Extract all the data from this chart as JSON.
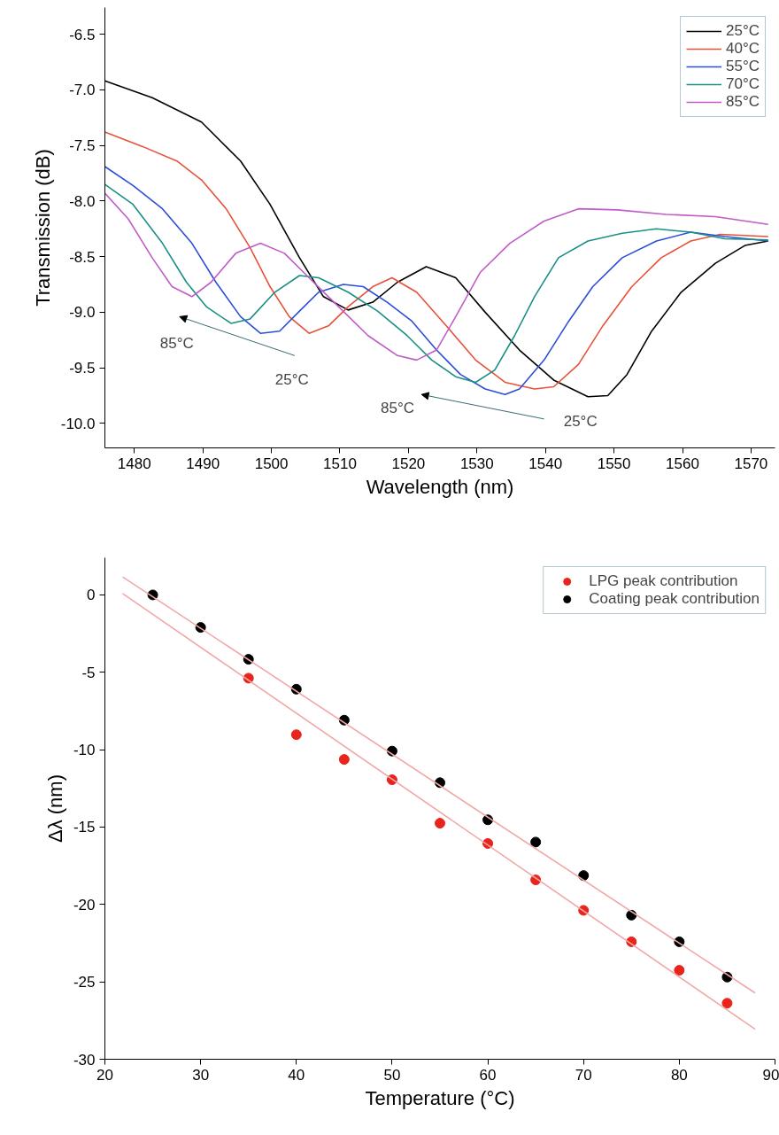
{
  "chart_data": [
    {
      "type": "line",
      "xlabel": "Wavelength (nm)",
      "ylabel": "Transmission (dB)",
      "xlim": [
        1475.7,
        1573.5
      ],
      "ylim": [
        -10.22,
        -6.26
      ],
      "xticks": [
        1480,
        1490,
        1500,
        1510,
        1520,
        1530,
        1540,
        1550,
        1560,
        1570
      ],
      "yticks": [
        -6.5,
        {
          "value": -7,
          "label": "-7.0"
        },
        -7.5,
        {
          "value": -8,
          "label": "-8.0"
        },
        -8.5,
        {
          "value": -9,
          "label": "-9.0"
        },
        -9.5,
        {
          "value": -10,
          "label": "-10.0"
        }
      ],
      "grid": false,
      "legend": "top right",
      "marker": "none",
      "line_style": "solid",
      "series": [
        {
          "name": "25°C",
          "color": "#000000",
          "x": [
            1475.7,
            1482.6,
            1489.8,
            1495.5,
            1499.8,
            1504.1,
            1507.6,
            1511.2,
            1514.8,
            1518.4,
            1522.6,
            1526.9,
            1531.2,
            1536.2,
            1541.2,
            1546.2,
            1549.1,
            1551.9,
            1555.5,
            1559.8,
            1564.8,
            1569.1,
            1572.5
          ],
          "values": [
            -6.92,
            -7.07,
            -7.29,
            -7.64,
            -8.03,
            -8.51,
            -8.86,
            -8.98,
            -8.91,
            -8.73,
            -8.59,
            -8.69,
            -9.0,
            -9.34,
            -9.61,
            -9.76,
            -9.75,
            -9.56,
            -9.17,
            -8.82,
            -8.56,
            -8.4,
            -8.36
          ]
        },
        {
          "name": "40°C",
          "color": "#e8523a",
          "x": [
            1475.7,
            1481.2,
            1486.2,
            1489.8,
            1493.4,
            1496.9,
            1499.8,
            1502.6,
            1505.5,
            1508.4,
            1511.2,
            1514.8,
            1517.6,
            1521.2,
            1525.5,
            1529.8,
            1534.1,
            1538.4,
            1541.2,
            1544.8,
            1548.4,
            1552.6,
            1556.9,
            1561.2,
            1565.5,
            1572.5
          ],
          "values": [
            -7.38,
            -7.51,
            -7.64,
            -7.81,
            -8.07,
            -8.42,
            -8.77,
            -9.04,
            -9.19,
            -9.12,
            -8.95,
            -8.77,
            -8.69,
            -8.82,
            -9.12,
            -9.43,
            -9.63,
            -9.69,
            -9.67,
            -9.47,
            -9.12,
            -8.77,
            -8.51,
            -8.36,
            -8.3,
            -8.32
          ]
        },
        {
          "name": "55°C",
          "color": "#2b4fd6",
          "x": [
            1475.7,
            1479.8,
            1484.1,
            1488.4,
            1491.9,
            1495.5,
            1498.4,
            1501.2,
            1504.1,
            1506.9,
            1510.5,
            1513.4,
            1516.9,
            1520.5,
            1524.1,
            1527.6,
            1531.2,
            1534.1,
            1536.2,
            1539.8,
            1543.4,
            1546.9,
            1551.2,
            1556.2,
            1561.2,
            1566.2,
            1572.5
          ],
          "values": [
            -7.69,
            -7.86,
            -8.07,
            -8.38,
            -8.73,
            -9.04,
            -9.19,
            -9.17,
            -8.99,
            -8.82,
            -8.75,
            -8.77,
            -8.91,
            -9.08,
            -9.34,
            -9.56,
            -9.69,
            -9.74,
            -9.69,
            -9.43,
            -9.08,
            -8.77,
            -8.51,
            -8.36,
            -8.28,
            -8.32,
            -8.36
          ]
        },
        {
          "name": "70°C",
          "color": "#1a8f86",
          "x": [
            1475.7,
            1479.8,
            1484.1,
            1487.6,
            1490.5,
            1494.1,
            1496.9,
            1500.5,
            1504.1,
            1506.9,
            1511.2,
            1515.5,
            1519.8,
            1523.4,
            1526.9,
            1529.8,
            1532.6,
            1535.5,
            1538.4,
            1541.9,
            1546.2,
            1551.2,
            1556.2,
            1561.2,
            1566.2,
            1572.5
          ],
          "values": [
            -7.85,
            -8.03,
            -8.38,
            -8.73,
            -8.95,
            -9.1,
            -9.06,
            -8.82,
            -8.67,
            -8.69,
            -8.82,
            -8.99,
            -9.21,
            -9.43,
            -9.58,
            -9.63,
            -9.52,
            -9.21,
            -8.86,
            -8.51,
            -8.36,
            -8.29,
            -8.25,
            -8.28,
            -8.34,
            -8.35
          ]
        },
        {
          "name": "85°C",
          "color": "#c05cc8",
          "x": [
            1475.7,
            1479.1,
            1482.6,
            1485.5,
            1488.4,
            1491.2,
            1494.8,
            1498.4,
            1501.9,
            1505.5,
            1509.8,
            1514.1,
            1518.4,
            1521.2,
            1524.1,
            1526.9,
            1530.5,
            1534.8,
            1539.8,
            1544.8,
            1550.5,
            1557.6,
            1564.8,
            1572.5
          ],
          "values": [
            -7.93,
            -8.16,
            -8.51,
            -8.77,
            -8.86,
            -8.73,
            -8.47,
            -8.38,
            -8.47,
            -8.69,
            -8.95,
            -9.21,
            -9.39,
            -9.43,
            -9.34,
            -9.04,
            -8.64,
            -8.38,
            -8.18,
            -8.07,
            -8.08,
            -8.12,
            -8.14,
            -8.21
          ]
        }
      ],
      "annotations": [
        "85°C",
        "25°C",
        "85°C",
        "25°C"
      ]
    },
    {
      "type": "scatter",
      "xlabel": "Temperature (°C)",
      "ylabel": "Δλ (nm)",
      "xlim": [
        20,
        90
      ],
      "ylim": [
        -30,
        2.4
      ],
      "xticks": [
        20,
        30,
        40,
        50,
        60,
        70,
        80,
        90
      ],
      "yticks": [
        -30,
        -25,
        -20,
        -15,
        -10,
        -5,
        0
      ],
      "grid": false,
      "legend": "top right",
      "marker": "circle",
      "x": [
        25,
        30,
        35,
        40,
        45,
        50,
        55,
        60,
        65,
        70,
        75,
        80,
        85
      ],
      "series": [
        {
          "name": "LPG peak contribution",
          "color": "#e8241c",
          "values": [
            null,
            null,
            -5.38,
            -9.03,
            -10.63,
            -11.94,
            -14.75,
            -16.06,
            -18.41,
            -20.38,
            -22.41,
            -24.25,
            -26.38
          ]
        },
        {
          "name": "Coating peak contribution",
          "color": "#000000",
          "values": [
            0,
            -2.1,
            -4.16,
            -6.09,
            -8.09,
            -10.09,
            -12.13,
            -14.53,
            -15.97,
            -18.13,
            -20.69,
            -22.41,
            -24.69
          ]
        },
        {
          "type": "line",
          "marker": "none",
          "color": "#f0a8a8",
          "x": [
            21.85,
            87.93
          ],
          "values": [
            1.16,
            -25.72
          ]
        },
        {
          "type": "line",
          "marker": "none",
          "color": "#f0a8a8",
          "x": [
            21.85,
            87.93
          ],
          "values": [
            0.09,
            -28.06
          ]
        }
      ]
    }
  ]
}
